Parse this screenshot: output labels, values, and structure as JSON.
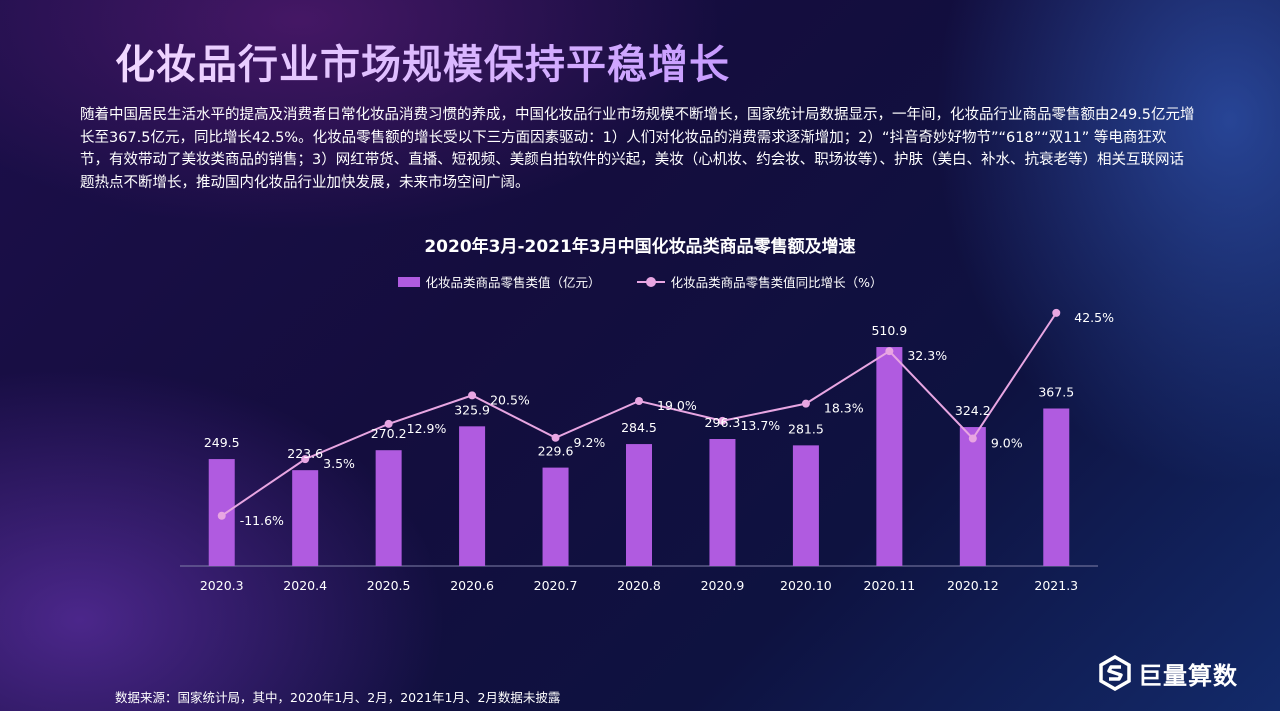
{
  "page": {
    "title": "化妆品行业市场规模保持平稳增长",
    "intro": "随着中国居民生活水平的提高及消费者日常化妆品消费习惯的养成，中国化妆品行业市场规模不断增长，国家统计局数据显示，一年间，化妆品行业商品零售额由249.5亿元增长至367.5亿元，同比增长42.5%。化妆品零售额的增长受以下三方面因素驱动：1）人们对化妆品的消费需求逐渐增加；2）“抖音奇妙好物节”“618”“双11” 等电商狂欢节，有效带动了美妆类商品的销售；3）网红带货、直播、短视频、美颜自拍软件的兴起，美妆（心机妆、约会妆、职场妆等）、护肤（美白、补水、抗衰老等）相关互联网话题热点不断增长，推动国内化妆品行业加快发展，未来市场空间广阔。",
    "source": "数据来源：国家统计局，其中，2020年1月、2月，2021年1月、2月数据未披露",
    "logo_text": "巨量算数",
    "logo_icon": "hexagon-s-logo-icon"
  },
  "chart_data": {
    "type": "bar",
    "title": "2020年3月-2021年3月中国化妆品类商品零售额及增速",
    "categories": [
      "2020.3",
      "2020.4",
      "2020.5",
      "2020.6",
      "2020.7",
      "2020.8",
      "2020.9",
      "2020.10",
      "2020.11",
      "2020.12",
      "2021.3"
    ],
    "series": [
      {
        "name": "化妆品类商品零售类值（亿元）",
        "type": "bar",
        "color": "#b05be0",
        "values": [
          249.5,
          223.6,
          270.2,
          325.9,
          229.6,
          284.5,
          296.3,
          281.5,
          510.9,
          324.2,
          367.5
        ],
        "labels": [
          "249.5",
          "223.6",
          "270.2",
          "325.9",
          "229.6",
          "284.5",
          "296.3",
          "281.5",
          "510.9",
          "324.2",
          "367.5"
        ]
      },
      {
        "name": "化妆品类商品零售类值同比增长（%）",
        "type": "line",
        "color": "#e8a6e2",
        "values": [
          -11.6,
          3.5,
          12.9,
          20.5,
          9.2,
          19.0,
          13.7,
          18.3,
          32.3,
          9.0,
          42.5
        ],
        "labels": [
          "-11.6%",
          "3.5%",
          "12.9%",
          "20.5%",
          "9.2%",
          "19.0%",
          "13.7%",
          "18.3%",
          "32.3%",
          "9.0%",
          "42.5%"
        ]
      }
    ],
    "ylim_bar": [
      0,
      700
    ],
    "ylim_line": [
      -25,
      55
    ],
    "grid": false,
    "legend": "top-center"
  }
}
